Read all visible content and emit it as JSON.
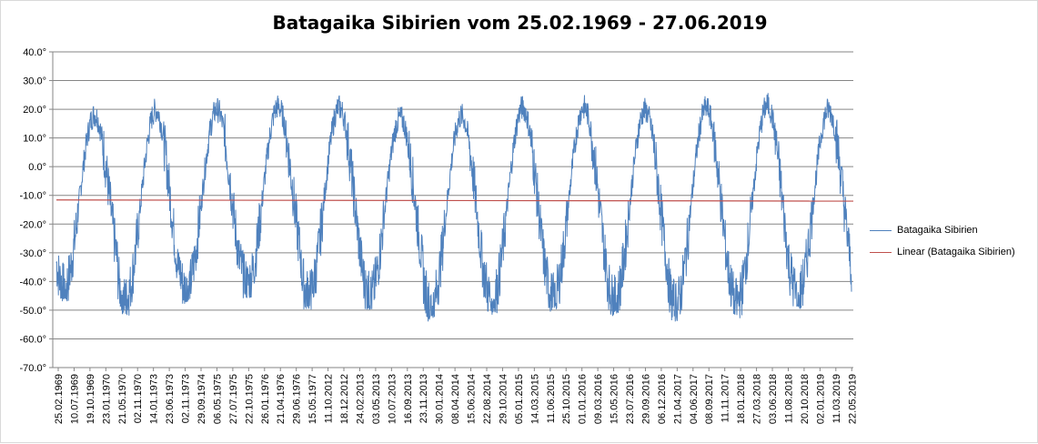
{
  "chart_data": {
    "type": "line",
    "title": "Batagaika Sibirien vom 25.02.1969  - 27.06.2019",
    "xlabel": "",
    "ylabel": "",
    "ylim": [
      -70,
      40
    ],
    "y_ticks": [
      "40.0°",
      "30.0°",
      "20.0°",
      "10.0°",
      "0.0°",
      "-10.0°",
      "-20.0°",
      "-30.0°",
      "-40.0°",
      "-50.0°",
      "-60.0°",
      "-70.0°"
    ],
    "x_tick_labels": [
      "25.02.1969",
      "10.07.1969",
      "19.10.1969",
      "23.01.1970",
      "21.05.1970",
      "02.11.1970",
      "14.01.1973",
      "23.06.1973",
      "02.11.1973",
      "29.09.1974",
      "06.05.1975",
      "27.07.1975",
      "22.10.1975",
      "26.01.1976",
      "21.04.1976",
      "29.06.1976",
      "15.05.1977",
      "11.10.2012",
      "18.12.2012",
      "24.02.2013",
      "03.05.2013",
      "10.07.2013",
      "16.09.2013",
      "23.11.2013",
      "30.01.2014",
      "08.04.2014",
      "15.06.2014",
      "22.08.2014",
      "29.10.2014",
      "05.01.2015",
      "14.03.2015",
      "11.06.2015",
      "25.10.2015",
      "01.01.2016",
      "09.03.2016",
      "15.05.2016",
      "23.07.2016",
      "29.09.2016",
      "06.12.2016",
      "21.04.2017",
      "04.06.2017",
      "08.09.2017",
      "11.11.2017",
      "18.01.2018",
      "27.03.2018",
      "03.06.2018",
      "11.08.2018",
      "20.10.2018",
      "02.01.2019",
      "11.03.2019",
      "22.05.2019"
    ],
    "grid": true,
    "legend_position": "right",
    "series": [
      {
        "name": "Batagaika Sibirien",
        "color": "#4f81bd",
        "cycles": [
          {
            "label": "1969",
            "min": -47,
            "max": 23
          },
          {
            "label": "1970",
            "min": -52,
            "max": 25
          },
          {
            "label": "1973",
            "min": -48,
            "max": 25
          },
          {
            "label": "1975",
            "min": -46,
            "max": 26
          },
          {
            "label": "1976",
            "min": -50,
            "max": 26
          },
          {
            "label": "2012",
            "min": -50,
            "max": 22
          },
          {
            "label": "2013",
            "min": -54,
            "max": 23
          },
          {
            "label": "2014",
            "min": -52,
            "max": 26
          },
          {
            "label": "2015",
            "min": -51,
            "max": 26
          },
          {
            "label": "2016",
            "min": -52,
            "max": 25
          },
          {
            "label": "2017",
            "min": -54,
            "max": 26
          },
          {
            "label": "2018",
            "min": -53,
            "max": 27
          },
          {
            "label": "2019",
            "min": -50,
            "max": 25
          }
        ]
      },
      {
        "name": "Linear (Batagaika Sibirien)",
        "color": "#c0504d",
        "trend_start": -11.6,
        "trend_end": -12.0
      }
    ]
  }
}
